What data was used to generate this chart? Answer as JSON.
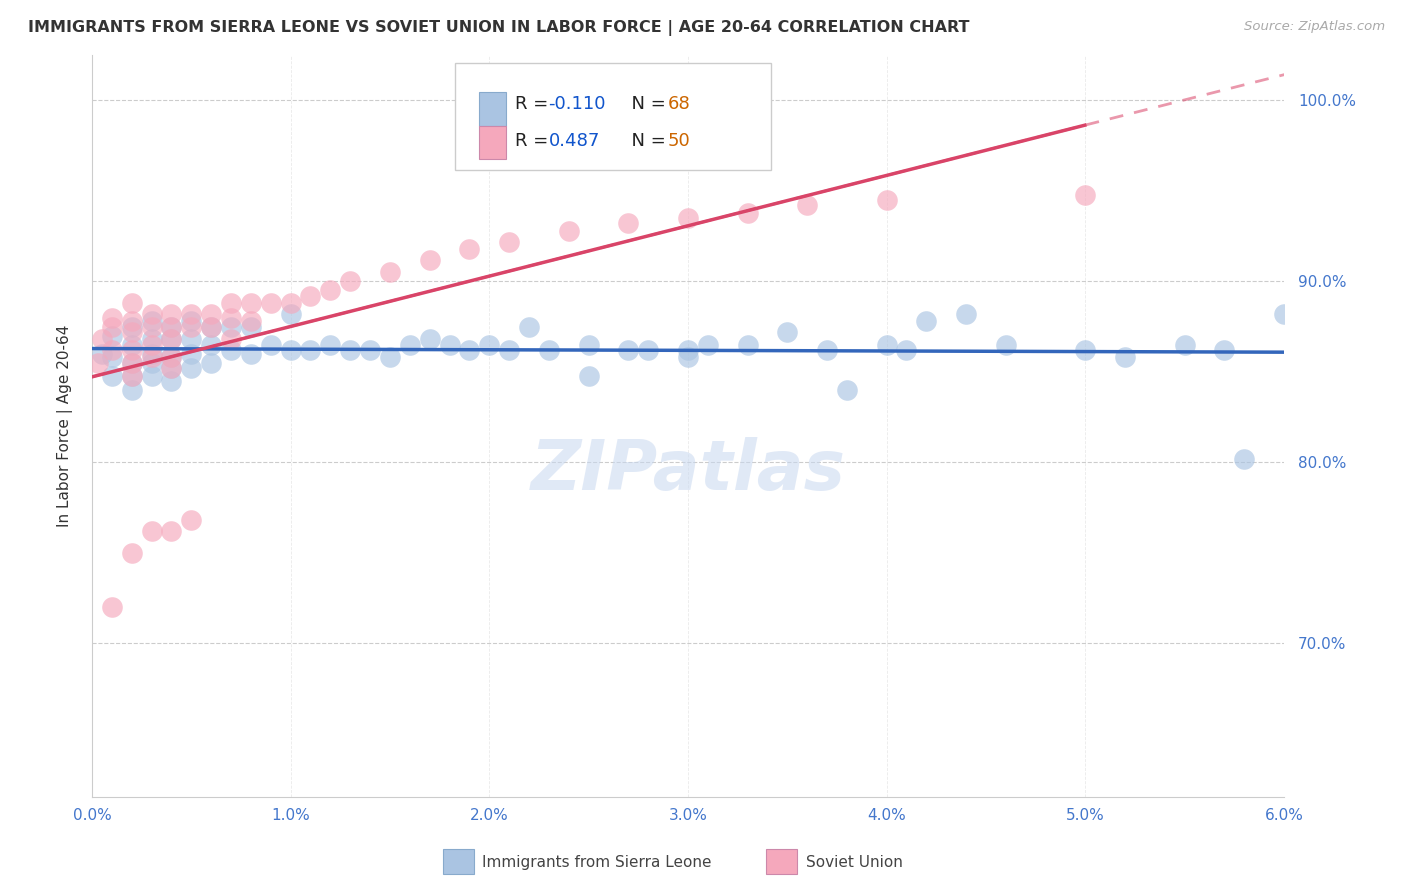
{
  "title": "IMMIGRANTS FROM SIERRA LEONE VS SOVIET UNION IN LABOR FORCE | AGE 20-64 CORRELATION CHART",
  "source": "Source: ZipAtlas.com",
  "ylabel": "In Labor Force | Age 20-64",
  "y_tick_labels": [
    "100.0%",
    "90.0%",
    "80.0%",
    "70.0%"
  ],
  "y_tick_values": [
    1.0,
    0.9,
    0.8,
    0.7
  ],
  "x_range": [
    0.0,
    0.06
  ],
  "y_range": [
    0.615,
    1.025
  ],
  "legend1_r": "-0.110",
  "legend1_n": "68",
  "legend2_r": "0.487",
  "legend2_n": "50",
  "legend1_label": "Immigrants from Sierra Leone",
  "legend2_label": "Soviet Union",
  "sierra_leone_color": "#aac4e2",
  "soviet_union_color": "#f5a8bc",
  "trend_sierra_color": "#3366bb",
  "trend_soviet_color": "#d94468",
  "background_color": "#ffffff",
  "watermark_color": "#c8d8f0",
  "legend_text_color": "#1155cc",
  "legend_r_text_color": "#000000",
  "sl_x": [
    0.0005,
    0.001,
    0.001,
    0.001,
    0.002,
    0.002,
    0.002,
    0.002,
    0.002,
    0.003,
    0.003,
    0.003,
    0.003,
    0.003,
    0.004,
    0.004,
    0.004,
    0.004,
    0.004,
    0.005,
    0.005,
    0.005,
    0.005,
    0.006,
    0.006,
    0.006,
    0.007,
    0.007,
    0.008,
    0.008,
    0.009,
    0.01,
    0.01,
    0.011,
    0.012,
    0.013,
    0.014,
    0.015,
    0.016,
    0.017,
    0.018,
    0.019,
    0.02,
    0.021,
    0.022,
    0.023,
    0.025,
    0.027,
    0.028,
    0.03,
    0.031,
    0.033,
    0.035,
    0.037,
    0.04,
    0.042,
    0.044,
    0.046,
    0.05,
    0.052,
    0.055,
    0.057,
    0.06,
    0.038,
    0.041,
    0.03,
    0.025,
    0.058
  ],
  "sl_y": [
    0.86,
    0.87,
    0.858,
    0.848,
    0.875,
    0.865,
    0.855,
    0.848,
    0.84,
    0.878,
    0.868,
    0.86,
    0.855,
    0.848,
    0.875,
    0.868,
    0.858,
    0.852,
    0.845,
    0.878,
    0.868,
    0.86,
    0.852,
    0.875,
    0.865,
    0.855,
    0.875,
    0.862,
    0.875,
    0.86,
    0.865,
    0.882,
    0.862,
    0.862,
    0.865,
    0.862,
    0.862,
    0.858,
    0.865,
    0.868,
    0.865,
    0.862,
    0.865,
    0.862,
    0.875,
    0.862,
    0.865,
    0.862,
    0.862,
    0.862,
    0.865,
    0.865,
    0.872,
    0.862,
    0.865,
    0.878,
    0.882,
    0.865,
    0.862,
    0.858,
    0.865,
    0.862,
    0.882,
    0.84,
    0.862,
    0.858,
    0.848,
    0.802
  ],
  "su_x": [
    0.0003,
    0.0005,
    0.001,
    0.001,
    0.001,
    0.001,
    0.002,
    0.002,
    0.002,
    0.002,
    0.002,
    0.002,
    0.002,
    0.003,
    0.003,
    0.003,
    0.003,
    0.003,
    0.004,
    0.004,
    0.004,
    0.004,
    0.004,
    0.004,
    0.005,
    0.005,
    0.005,
    0.006,
    0.006,
    0.007,
    0.007,
    0.007,
    0.008,
    0.008,
    0.009,
    0.01,
    0.011,
    0.012,
    0.013,
    0.015,
    0.017,
    0.019,
    0.021,
    0.024,
    0.027,
    0.03,
    0.033,
    0.036,
    0.04,
    0.05
  ],
  "su_y": [
    0.855,
    0.868,
    0.88,
    0.875,
    0.862,
    0.72,
    0.888,
    0.878,
    0.872,
    0.862,
    0.855,
    0.848,
    0.75,
    0.882,
    0.875,
    0.865,
    0.858,
    0.762,
    0.882,
    0.875,
    0.868,
    0.858,
    0.852,
    0.762,
    0.882,
    0.875,
    0.768,
    0.882,
    0.875,
    0.888,
    0.88,
    0.868,
    0.888,
    0.878,
    0.888,
    0.888,
    0.892,
    0.895,
    0.9,
    0.905,
    0.912,
    0.918,
    0.922,
    0.928,
    0.932,
    0.935,
    0.938,
    0.942,
    0.945,
    0.948
  ]
}
